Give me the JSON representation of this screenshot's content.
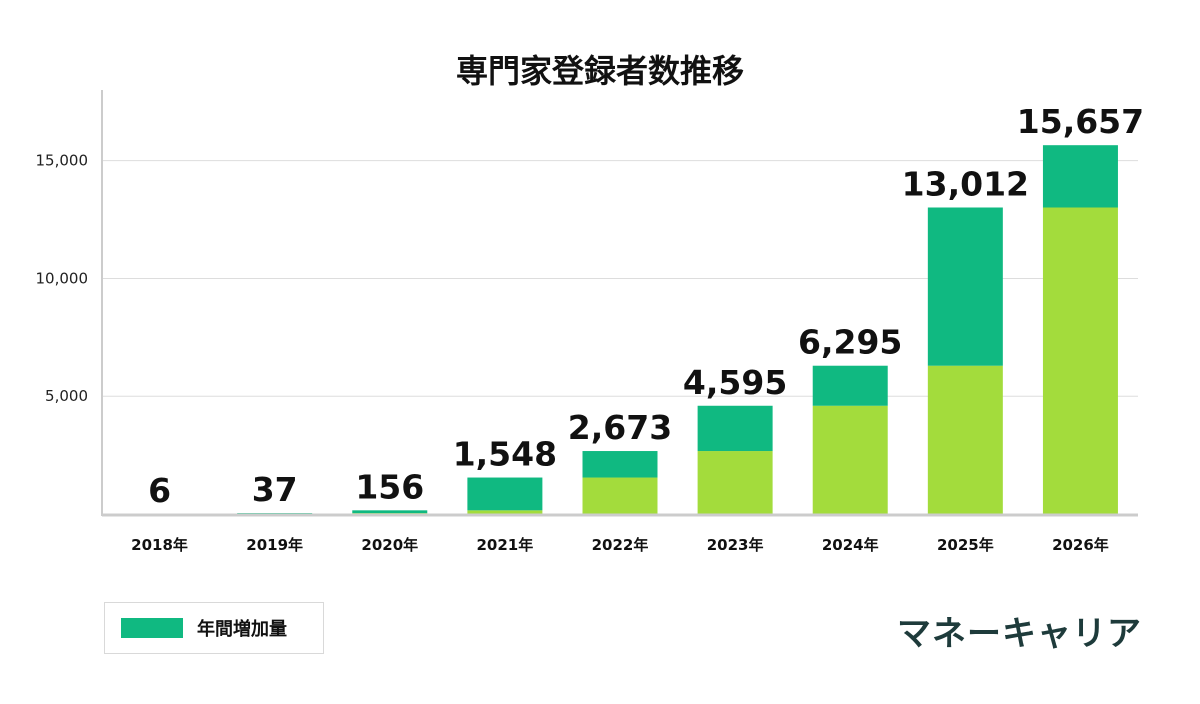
{
  "colors": {
    "increase": "#10b981",
    "base": "#a3dc3c",
    "grid": "#dddddd",
    "axis": "#cccccc",
    "brand": "#1e3b3b"
  },
  "legend": {
    "label": "年間増加量"
  },
  "brand": {
    "text": "マネーキャリア"
  },
  "chart_data": {
    "type": "bar",
    "stacked": true,
    "title": "専門家登録者数推移",
    "xlabel": "",
    "ylabel": "",
    "categories": [
      "2018年",
      "2019年",
      "2020年",
      "2021年",
      "2022年",
      "2023年",
      "2024年",
      "2025年",
      "2026年"
    ],
    "totals": [
      6,
      37,
      156,
      1548,
      2673,
      4595,
      6295,
      13012,
      15657
    ],
    "total_labels": [
      "6",
      "37",
      "156",
      "1,548",
      "2,673",
      "4,595",
      "6,295",
      "13,012",
      "15,657"
    ],
    "series": [
      {
        "role": "base",
        "values": [
          0,
          6,
          37,
          156,
          1548,
          2673,
          4595,
          6295,
          13012
        ]
      },
      {
        "name": "年間増加量",
        "role": "increase",
        "values": [
          6,
          31,
          119,
          1392,
          1125,
          1922,
          1700,
          6717,
          2645
        ]
      }
    ],
    "yticks": [
      5000,
      10000,
      15000
    ],
    "ytick_labels": [
      "5,000",
      "10,000",
      "15,000"
    ],
    "ylim": [
      0,
      18000
    ],
    "grid": true,
    "legend_position": "bottom-left"
  }
}
